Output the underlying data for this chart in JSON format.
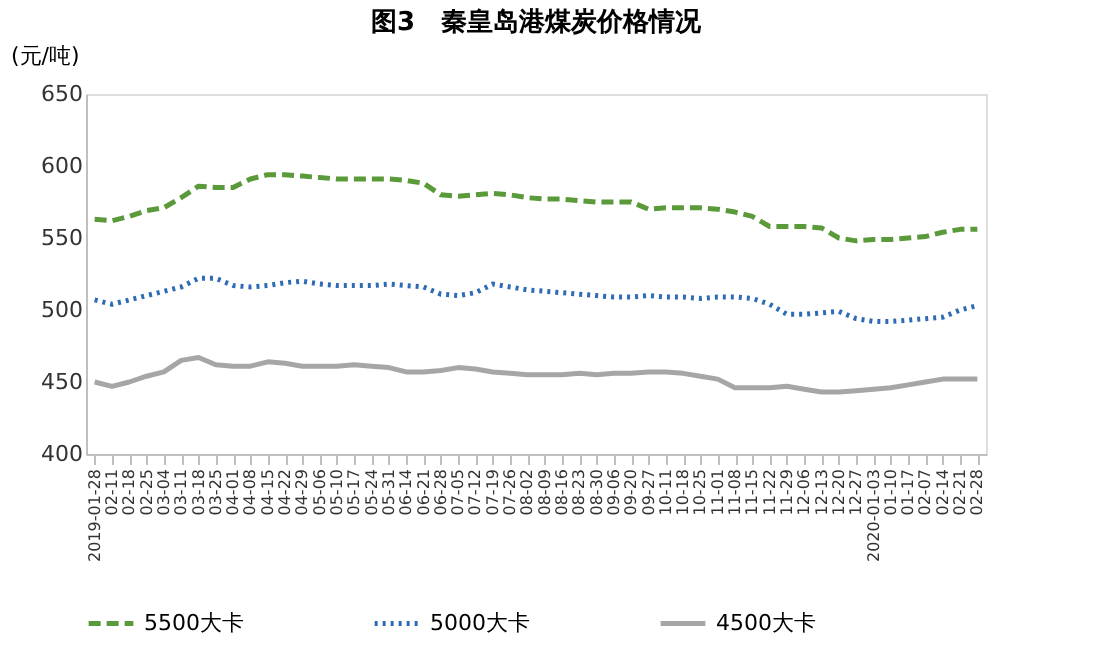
{
  "chart_data": {
    "type": "line",
    "title": "图3　秦皇岛港煤炭价格情况",
    "ylabel": "(元/吨)",
    "categories": [
      "2019-01-28",
      "02-11",
      "02-18",
      "02-25",
      "03-04",
      "03-11",
      "03-18",
      "03-25",
      "04-01",
      "04-08",
      "04-15",
      "04-22",
      "04-29",
      "05-06",
      "05-10",
      "05-17",
      "05-24",
      "05-31",
      "06-14",
      "06-21",
      "06-28",
      "07-05",
      "07-12",
      "07-19",
      "07-26",
      "08-02",
      "08-09",
      "08-16",
      "08-23",
      "08-30",
      "09-06",
      "09-20",
      "09-27",
      "10-11",
      "10-18",
      "10-25",
      "11-01",
      "11-08",
      "11-15",
      "11-22",
      "11-29",
      "12-06",
      "12-13",
      "12-20",
      "12-27",
      "2020-01-03",
      "01-10",
      "01-17",
      "02-07",
      "02-14",
      "02-21",
      "02-28"
    ],
    "series": [
      {
        "name": "5500大卡",
        "color": "#5b9a3a",
        "line_style": "dashed",
        "values": [
          563,
          562,
          565,
          569,
          571,
          578,
          586,
          585,
          585,
          591,
          594,
          594,
          593,
          592,
          591,
          591,
          591,
          591,
          590,
          588,
          580,
          579,
          580,
          581,
          580,
          578,
          577,
          577,
          576,
          575,
          575,
          575,
          570,
          571,
          571,
          571,
          570,
          568,
          565,
          558,
          558,
          558,
          557,
          550,
          548,
          549,
          549,
          550,
          551,
          554,
          556,
          556
        ]
      },
      {
        "name": "5000大卡",
        "color": "#2e6bb5",
        "line_style": "dotted",
        "values": [
          507,
          504,
          507,
          510,
          513,
          516,
          522,
          522,
          517,
          516,
          517,
          519,
          520,
          518,
          517,
          517,
          517,
          518,
          517,
          516,
          511,
          510,
          512,
          518,
          516,
          514,
          513,
          512,
          511,
          510,
          509,
          509,
          510,
          509,
          509,
          508,
          509,
          509,
          508,
          504,
          497,
          497,
          498,
          499,
          494,
          492,
          492,
          493,
          494,
          495,
          500,
          503
        ]
      },
      {
        "name": "4500大卡",
        "color": "#a6a6a6",
        "line_style": "solid",
        "values": [
          450,
          447,
          450,
          454,
          457,
          465,
          467,
          462,
          461,
          461,
          464,
          463,
          461,
          461,
          461,
          462,
          461,
          460,
          457,
          457,
          458,
          460,
          459,
          457,
          456,
          455,
          455,
          455,
          456,
          455,
          456,
          456,
          457,
          457,
          456,
          454,
          452,
          446,
          446,
          446,
          447,
          445,
          443,
          443,
          444,
          445,
          446,
          448,
          450,
          452,
          452,
          452
        ]
      }
    ],
    "ylim": [
      400,
      650
    ],
    "yticks": [
      400,
      450,
      500,
      550,
      600,
      650
    ],
    "grid": false,
    "legend": "bottom"
  }
}
